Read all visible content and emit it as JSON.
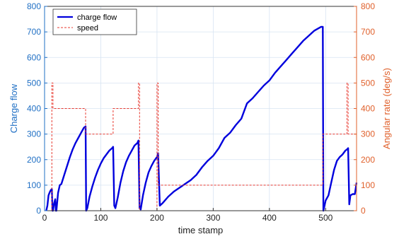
{
  "chart_data": {
    "type": "line",
    "xlabel": "time stamp",
    "ylabel_left": "Charge flow",
    "ylabel_right": "Angular rate (deg/s)",
    "xlim": [
      0,
      555
    ],
    "ylim_left": [
      0,
      800
    ],
    "ylim_right": [
      0,
      800
    ],
    "x_ticks": [
      "0",
      "100",
      "200",
      "300",
      "400",
      "500"
    ],
    "y_ticks_left": [
      "0",
      "100",
      "200",
      "300",
      "400",
      "500",
      "600",
      "700",
      "800"
    ],
    "y_ticks_right": [
      "0",
      "100",
      "200",
      "300",
      "400",
      "500",
      "600",
      "700",
      "800"
    ],
    "grid": true,
    "legend_placement": "top-left",
    "colors": {
      "charge_flow": "#0000dd",
      "speed": "#e8392f",
      "left_axis": "#1f6fc4",
      "right_axis": "#e0602b",
      "grid": "#d7e4f2"
    },
    "series": [
      {
        "name": "charge flow",
        "axis": "left",
        "style": "solid",
        "x": [
          3,
          5,
          7,
          9,
          11,
          13,
          14,
          15,
          17,
          19,
          20,
          21,
          24,
          27,
          30,
          35,
          40,
          45,
          50,
          55,
          60,
          65,
          70,
          73,
          74,
          76,
          80,
          85,
          90,
          95,
          100,
          105,
          110,
          115,
          120,
          122,
          124,
          126,
          130,
          135,
          140,
          145,
          150,
          155,
          160,
          165,
          167,
          169,
          171,
          175,
          180,
          185,
          190,
          195,
          200,
          202,
          205,
          210,
          220,
          230,
          240,
          250,
          260,
          270,
          280,
          290,
          300,
          310,
          320,
          330,
          340,
          350,
          355,
          360,
          370,
          380,
          390,
          400,
          410,
          420,
          430,
          440,
          450,
          460,
          470,
          480,
          488,
          492,
          495,
          496,
          500,
          505,
          510,
          515,
          520,
          525,
          530,
          535,
          538,
          540,
          542,
          544,
          548,
          552,
          555
        ],
        "y": [
          0,
          20,
          60,
          72,
          80,
          85,
          0,
          0,
          30,
          45,
          0,
          0,
          70,
          100,
          105,
          140,
          175,
          210,
          240,
          265,
          285,
          305,
          325,
          330,
          0,
          10,
          55,
          95,
          130,
          160,
          185,
          205,
          220,
          235,
          245,
          250,
          20,
          10,
          50,
          110,
          155,
          190,
          215,
          235,
          255,
          265,
          275,
          10,
          5,
          60,
          110,
          150,
          175,
          195,
          210,
          225,
          20,
          30,
          55,
          75,
          90,
          105,
          120,
          140,
          170,
          195,
          215,
          245,
          285,
          305,
          335,
          360,
          390,
          420,
          440,
          465,
          490,
          510,
          540,
          565,
          590,
          615,
          640,
          665,
          685,
          705,
          715,
          720,
          720,
          0,
          40,
          60,
          110,
          160,
          195,
          210,
          220,
          235,
          240,
          245,
          25,
          60,
          65,
          65,
          110
        ]
      },
      {
        "name": "speed",
        "axis": "right",
        "style": "dashed",
        "x": [
          13,
          13,
          15,
          15,
          73,
          73,
          122,
          122,
          167,
          167,
          169,
          169,
          200,
          200,
          202,
          202,
          495,
          495,
          538,
          538,
          540,
          540,
          555
        ],
        "y": [
          0,
          500,
          500,
          400,
          400,
          300,
          300,
          400,
          400,
          500,
          500,
          0,
          0,
          500,
          500,
          100,
          100,
          300,
          300,
          500,
          500,
          300,
          300
        ]
      }
    ]
  }
}
